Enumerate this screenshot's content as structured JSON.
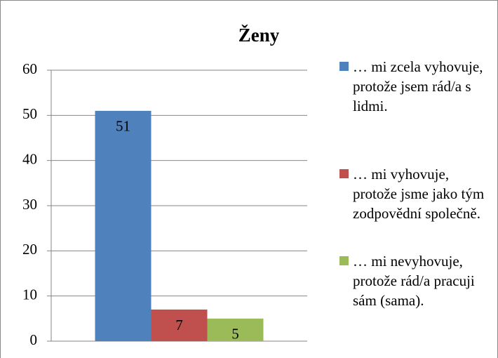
{
  "chart_data": {
    "type": "bar",
    "title": "Ženy",
    "categories": [
      null
    ],
    "series": [
      {
        "name": "… mi zcela vyhovuje, protože jsem rád/a s lidmi.",
        "color": "#4f81bd",
        "values": [
          51
        ]
      },
      {
        "name": "… mi vyhovuje, protože jsme jako tým zodpovědní společně.",
        "color": "#c0504d",
        "values": [
          7
        ]
      },
      {
        "name": "… mi nevyhovuje, protože rád/a pracuji sám (sama).",
        "color": "#9bbb59",
        "values": [
          5
        ]
      }
    ],
    "ylim": [
      0,
      60
    ],
    "yticks": [
      0,
      10,
      20,
      30,
      40,
      50,
      60
    ],
    "grid": true,
    "legend": "right"
  }
}
